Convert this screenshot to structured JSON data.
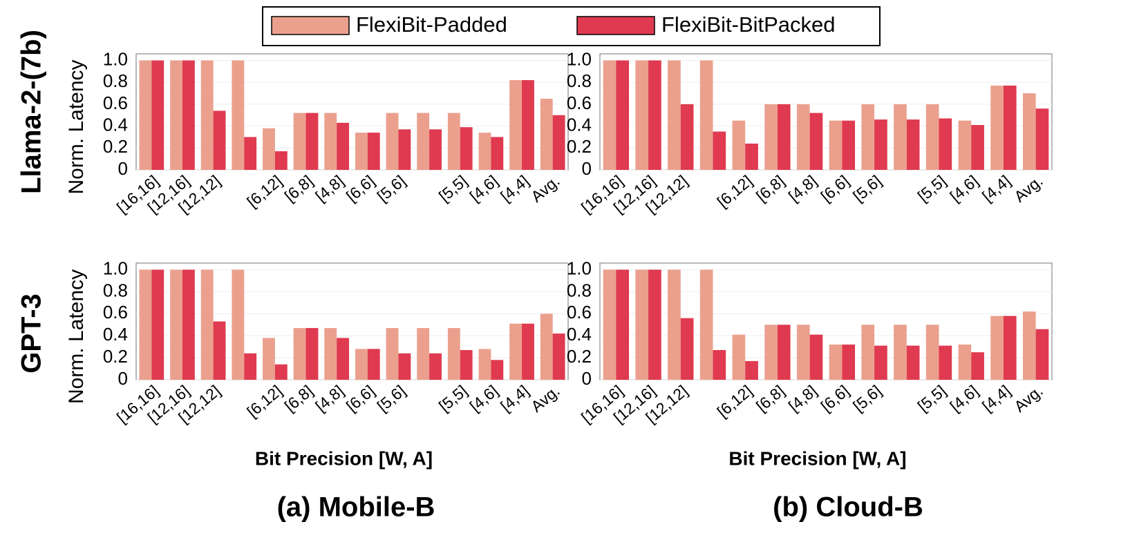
{
  "figure": {
    "row_labels": [
      "Llama-2-(7b)",
      "GPT-3"
    ],
    "captions": [
      "(a) Mobile-B",
      "(b) Cloud-B"
    ]
  },
  "chart_data": [
    {
      "type": "bar",
      "ylabel": "Norm. Latency",
      "categories": [
        "[16,16]",
        "[12,16]",
        "[12,12]",
        null,
        "[6,12]",
        "[6,8]",
        "[4,8]",
        "[6,6]",
        "[5,6]",
        null,
        "[5,5]",
        "[4,6]",
        "[4,4]",
        "Avg."
      ],
      "series": [
        {
          "name": "FlexiBit-Padded",
          "color": "#eba08e",
          "values": [
            1,
            1,
            1,
            1,
            0.38,
            0.52,
            0.52,
            0.34,
            0.52,
            0.52,
            0.52,
            0.34,
            0.82,
            0.65
          ]
        },
        {
          "name": "FlexiBit-BitPacked",
          "color": "#df3a50",
          "values": [
            1,
            1,
            0.54,
            0.3,
            0.17,
            0.52,
            0.43,
            0.34,
            0.37,
            0.37,
            0.39,
            0.3,
            0.82,
            0.5
          ]
        }
      ],
      "ylim": [
        0,
        1.06
      ],
      "yticks": [
        0,
        0.2,
        0.4,
        0.6,
        0.8,
        {
          "value": 1,
          "label": "1.0"
        }
      ]
    },
    {
      "type": "bar",
      "categories": [
        "[16,16]",
        "[12,16]",
        "[12,12]",
        null,
        "[6,12]",
        "[6,8]",
        "[4,8]",
        "[6,6]",
        "[5,6]",
        null,
        "[5,5]",
        "[4,6]",
        "[4,4]",
        "Avg."
      ],
      "series": [
        {
          "color": "#eba08e",
          "values": [
            1,
            1,
            1,
            1,
            0.45,
            0.6,
            0.6,
            0.45,
            0.6,
            0.6,
            0.6,
            0.45,
            0.77,
            0.7
          ]
        },
        {
          "color": "#df3a50",
          "values": [
            1,
            1,
            0.6,
            0.35,
            0.24,
            0.6,
            0.52,
            0.45,
            0.46,
            0.46,
            0.47,
            0.41,
            0.77,
            0.56
          ]
        }
      ],
      "ylim": [
        0,
        1.06
      ],
      "yticks": [
        0,
        0.2,
        0.4,
        0.6,
        0.8,
        {
          "value": 1,
          "label": "1.0"
        }
      ]
    },
    {
      "type": "bar",
      "ylabel": "Norm. Latency",
      "xlabel": "Bit Precision [W, A]",
      "categories": [
        "[16,16]",
        "[12,16]",
        "[12,12]",
        null,
        "[6,12]",
        "[6,8]",
        "[4,8]",
        "[6,6]",
        "[5,6]",
        null,
        "[5,5]",
        "[4,6]",
        "[4,4]",
        "Avg."
      ],
      "series": [
        {
          "color": "#eba08e",
          "values": [
            1,
            1,
            1,
            1,
            0.38,
            0.47,
            0.47,
            0.28,
            0.47,
            0.47,
            0.47,
            0.28,
            0.51,
            0.6
          ]
        },
        {
          "color": "#df3a50",
          "values": [
            1,
            1,
            0.53,
            0.24,
            0.14,
            0.47,
            0.38,
            0.28,
            0.24,
            0.24,
            0.27,
            0.18,
            0.51,
            0.42
          ]
        }
      ],
      "ylim": [
        0,
        1.06
      ],
      "yticks": [
        0,
        0.2,
        0.4,
        0.6,
        0.8,
        {
          "value": 1,
          "label": "1.0"
        }
      ]
    },
    {
      "type": "bar",
      "xlabel": "Bit Precision [W, A]",
      "categories": [
        "[16,16]",
        "[12,16]",
        "[12,12]",
        null,
        "[6,12]",
        "[6,8]",
        "[4,8]",
        "[6,6]",
        "[5,6]",
        null,
        "[5,5]",
        "[4,6]",
        "[4,4]",
        "Avg."
      ],
      "series": [
        {
          "color": "#eba08e",
          "values": [
            1,
            1,
            1,
            1,
            0.41,
            0.5,
            0.5,
            0.32,
            0.5,
            0.5,
            0.5,
            0.32,
            0.58,
            0.62
          ]
        },
        {
          "color": "#df3a50",
          "values": [
            1,
            1,
            0.56,
            0.27,
            0.17,
            0.5,
            0.41,
            0.32,
            0.31,
            0.31,
            0.31,
            0.25,
            0.58,
            0.46
          ]
        }
      ],
      "ylim": [
        0,
        1.06
      ],
      "yticks": [
        0,
        0.2,
        0.4,
        0.6,
        0.8,
        {
          "value": 1,
          "label": "1.0"
        }
      ]
    }
  ]
}
